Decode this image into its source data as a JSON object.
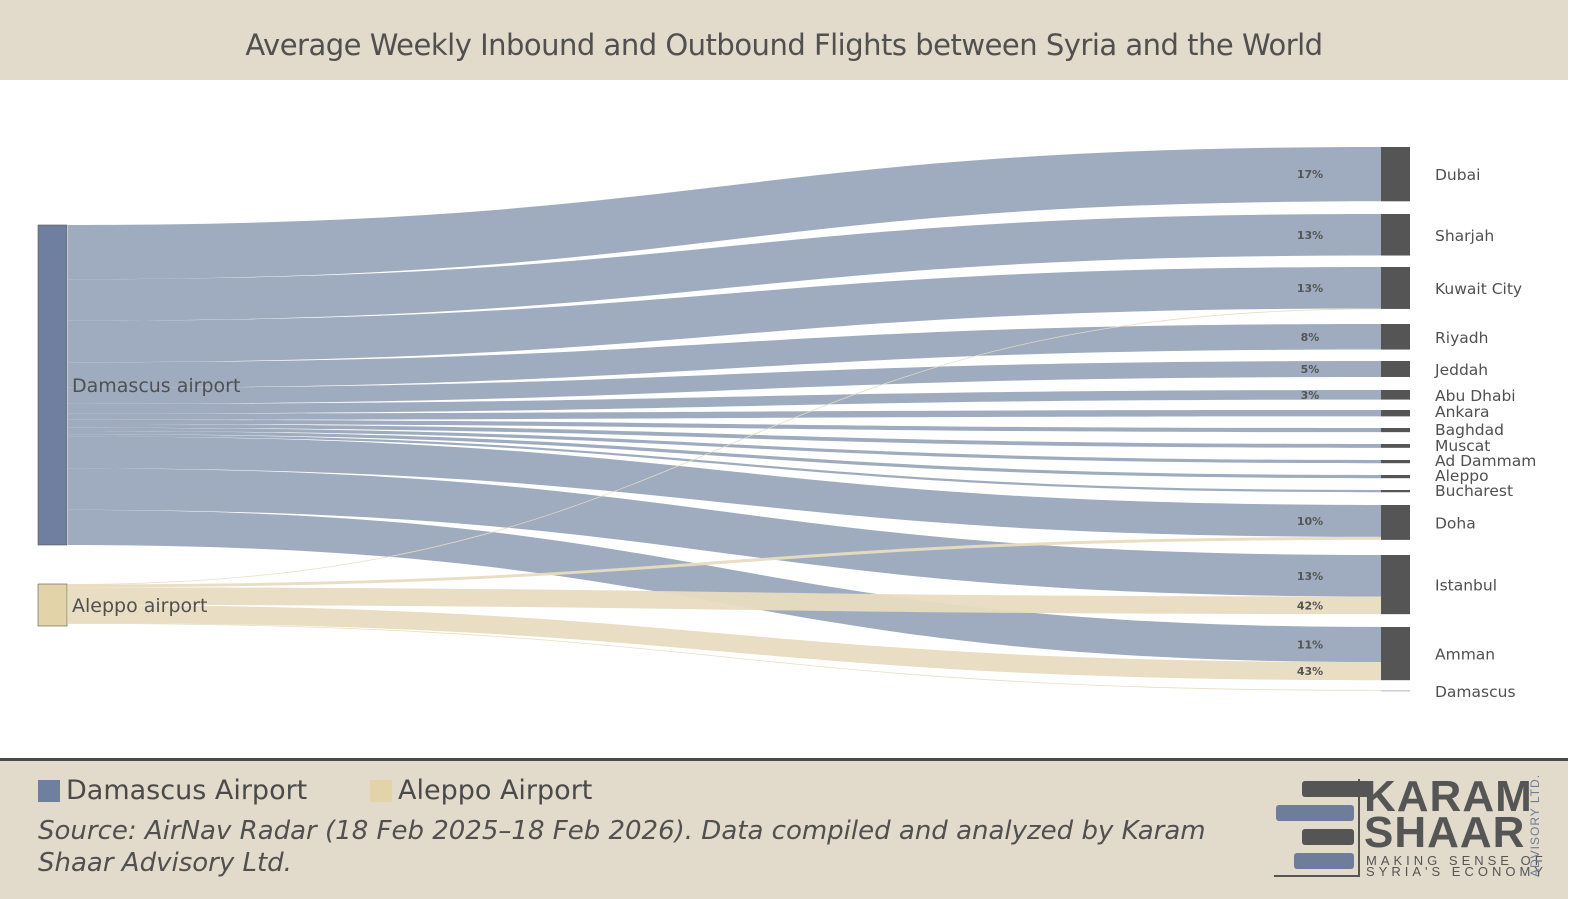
{
  "chart_data": {
    "type": "sankey",
    "title": "Average Weekly Inbound and Outbound Flights between Syria and the World",
    "sources": [
      {
        "name": "Damascus airport",
        "color": "#6e7fa0",
        "flow_color": "#9aa8bc"
      },
      {
        "name": "Aleppo airport",
        "color": "#e3d3a8",
        "flow_color": "#e8dcc0"
      }
    ],
    "targets": [
      "Dubai",
      "Sharjah",
      "Kuwait City",
      "Riyadh",
      "Jeddah",
      "Abu Dhabi",
      "Ankara",
      "Baghdad",
      "Muscat",
      "Ad Dammam",
      "Aleppo",
      "Bucharest",
      "Doha",
      "Istanbul",
      "Amman",
      "Damascus"
    ],
    "flows": [
      {
        "source": "Damascus airport",
        "target": "Dubai",
        "pct": 17,
        "label": "17%"
      },
      {
        "source": "Damascus airport",
        "target": "Sharjah",
        "pct": 13,
        "label": "13%"
      },
      {
        "source": "Damascus airport",
        "target": "Kuwait City",
        "pct": 13,
        "label": "13%"
      },
      {
        "source": "Damascus airport",
        "target": "Riyadh",
        "pct": 8,
        "label": "8%"
      },
      {
        "source": "Damascus airport",
        "target": "Jeddah",
        "pct": 5,
        "label": "5%"
      },
      {
        "source": "Damascus airport",
        "target": "Abu Dhabi",
        "pct": 3,
        "label": "3%"
      },
      {
        "source": "Damascus airport",
        "target": "Ankara",
        "pct": 2,
        "label": ""
      },
      {
        "source": "Damascus airport",
        "target": "Baghdad",
        "pct": 1.3,
        "label": ""
      },
      {
        "source": "Damascus airport",
        "target": "Muscat",
        "pct": 1.2,
        "label": ""
      },
      {
        "source": "Damascus airport",
        "target": "Ad Dammam",
        "pct": 1,
        "label": ""
      },
      {
        "source": "Damascus airport",
        "target": "Aleppo",
        "pct": 1,
        "label": ""
      },
      {
        "source": "Damascus airport",
        "target": "Bucharest",
        "pct": 0.7,
        "label": ""
      },
      {
        "source": "Damascus airport",
        "target": "Doha",
        "pct": 10,
        "label": "10%"
      },
      {
        "source": "Damascus airport",
        "target": "Istanbul",
        "pct": 13,
        "label": "13%"
      },
      {
        "source": "Damascus airport",
        "target": "Amman",
        "pct": 11,
        "label": "11%"
      },
      {
        "source": "Aleppo airport",
        "target": "Kuwait City",
        "pct": 1,
        "label": ""
      },
      {
        "source": "Aleppo airport",
        "target": "Doha",
        "pct": 7,
        "label": ""
      },
      {
        "source": "Aleppo airport",
        "target": "Istanbul",
        "pct": 42,
        "label": "42%"
      },
      {
        "source": "Aleppo airport",
        "target": "Amman",
        "pct": 43,
        "label": "43%"
      },
      {
        "source": "Aleppo airport",
        "target": "Damascus",
        "pct": 1,
        "label": ""
      }
    ],
    "target_color": "#555555"
  },
  "legend": [
    {
      "label": "Damascus Airport",
      "color": "#6e7fa0"
    },
    {
      "label": "Aleppo Airport",
      "color": "#e3d3a8"
    }
  ],
  "source_note": "Source: AirNav Radar (18 Feb 2025–18 Feb 2026). Data compiled and analyzed by Karam Shaar Advisory Ltd.",
  "logo": {
    "line1": "KARAM",
    "line2": "SHAAR",
    "tagline1": "MAKING SENSE OF",
    "tagline2": "SYRIA'S ECONOMY",
    "vertical": "ADVISORY LTD."
  }
}
